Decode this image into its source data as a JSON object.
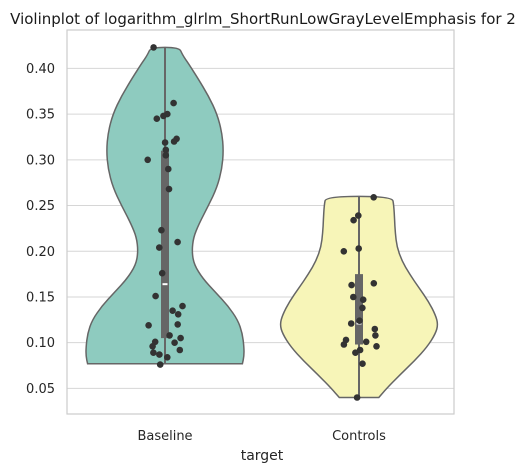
{
  "chart_data": {
    "type": "violin",
    "title": "Violinplot of logarithm_glrlm_ShortRunLowGrayLevelEmphasis for 2",
    "xlabel": "target",
    "ylabel": "",
    "ylim": [
      0.022,
      0.442
    ],
    "yticks": [
      0.05,
      0.1,
      0.15,
      0.2,
      0.25,
      0.3,
      0.35,
      0.4
    ],
    "ytick_labels": [
      "0.05",
      "0.10",
      "0.15",
      "0.20",
      "0.25",
      "0.30",
      "0.35",
      "0.40"
    ],
    "grid": true,
    "categories": [
      "Baseline",
      "Controls"
    ],
    "groups": [
      {
        "name": "Baseline",
        "color": "#8ecbbf",
        "min": 0.077,
        "max": 0.423,
        "q1": 0.105,
        "median": 0.164,
        "q3": 0.31,
        "density_profile": [
          [
            0.077,
            0.98
          ],
          [
            0.085,
            1.0
          ],
          [
            0.095,
            1.0
          ],
          [
            0.11,
            0.98
          ],
          [
            0.125,
            0.92
          ],
          [
            0.14,
            0.8
          ],
          [
            0.155,
            0.64
          ],
          [
            0.17,
            0.48
          ],
          [
            0.185,
            0.37
          ],
          [
            0.2,
            0.34
          ],
          [
            0.215,
            0.36
          ],
          [
            0.23,
            0.43
          ],
          [
            0.25,
            0.55
          ],
          [
            0.27,
            0.66
          ],
          [
            0.29,
            0.72
          ],
          [
            0.31,
            0.74
          ],
          [
            0.33,
            0.72
          ],
          [
            0.35,
            0.66
          ],
          [
            0.37,
            0.55
          ],
          [
            0.39,
            0.41
          ],
          [
            0.405,
            0.3
          ],
          [
            0.415,
            0.22
          ],
          [
            0.423,
            0.18
          ]
        ],
        "points": [
          0.423,
          0.362,
          0.35,
          0.348,
          0.345,
          0.323,
          0.32,
          0.319,
          0.311,
          0.305,
          0.3,
          0.29,
          0.268,
          0.223,
          0.21,
          0.204,
          0.176,
          0.151,
          0.14,
          0.135,
          0.131,
          0.12,
          0.119,
          0.108,
          0.105,
          0.101,
          0.1,
          0.096,
          0.092,
          0.089,
          0.087,
          0.084,
          0.076
        ]
      },
      {
        "name": "Controls",
        "color": "#f7f5b8",
        "min": 0.04,
        "max": 0.26,
        "q1": 0.098,
        "median": 0.121,
        "q3": 0.175,
        "density_profile": [
          [
            0.04,
            0.25
          ],
          [
            0.05,
            0.35
          ],
          [
            0.065,
            0.52
          ],
          [
            0.08,
            0.7
          ],
          [
            0.095,
            0.86
          ],
          [
            0.11,
            0.97
          ],
          [
            0.12,
            1.0
          ],
          [
            0.13,
            0.97
          ],
          [
            0.145,
            0.88
          ],
          [
            0.16,
            0.76
          ],
          [
            0.175,
            0.64
          ],
          [
            0.19,
            0.54
          ],
          [
            0.205,
            0.48
          ],
          [
            0.22,
            0.46
          ],
          [
            0.235,
            0.45
          ],
          [
            0.25,
            0.44
          ],
          [
            0.26,
            0.42
          ]
        ],
        "points": [
          0.259,
          0.239,
          0.234,
          0.203,
          0.2,
          0.165,
          0.163,
          0.15,
          0.147,
          0.138,
          0.124,
          0.121,
          0.115,
          0.108,
          0.103,
          0.101,
          0.098,
          0.096,
          0.092,
          0.089,
          0.077,
          0.04
        ]
      }
    ]
  }
}
